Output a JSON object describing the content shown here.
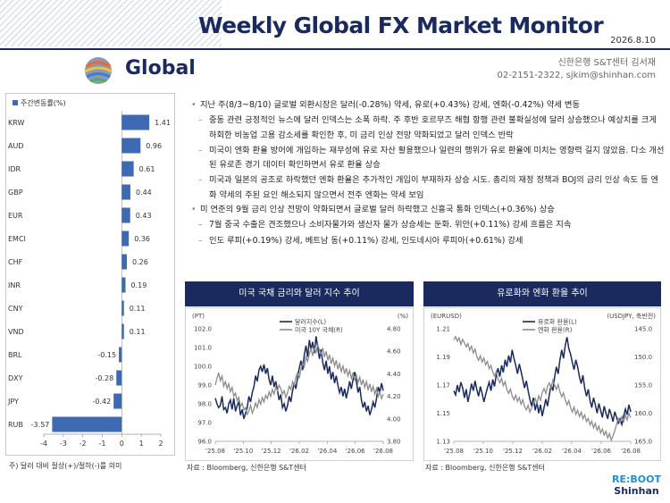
{
  "header": {
    "title": "Weekly Global FX Market Monitor",
    "date": "2026.8.10",
    "section_title": "Global",
    "author_line": "신한은행 S&T센터 김서재",
    "contact_line": "02-2151-2322, sjkim@shinhan.com"
  },
  "colors": {
    "navy": "#1a2a5e",
    "bar": "#3e6ab3",
    "grey_line": "#8c8c8c",
    "accent": "#1f8fd6"
  },
  "bullets": [
    {
      "level": 1,
      "text": "지난 주(8/3~8/10) 글로벌 외환시장은 달러(-0.28%) 약세, 유로(+0.43%) 강세, 엔화(-0.42%) 약세 변동"
    },
    {
      "level": 2,
      "text": "중동 관련 긍정적인 뉴스에 달러 인덱스는 소폭 하락. 주 후반 호르무즈 해협 항행 관련 불확실성에 달러 상승했으나 예상치를 크게 하회한 비농업 고용 감소세를 확인한 후, 미 금리 인상 전망 약화되었고 달러 인덱스 반락"
    },
    {
      "level": 2,
      "text": "미국이 엔화 환율 방어에 개입하는 재무성에 유로 자산 활용했으나 일련의 행위가 유로 환율에 미치는 영향력 길지 않았음. 다소 개선된 유로존 경기 데이터 확인하면서 유로 환율 상승"
    },
    {
      "level": 2,
      "text": "미국과 일본의 공조로 하락했던 엔화 환율은 추가적인 개입이 부재하자 상승 시도. 총리의 재정 정책과 BOJ의 금리 인상 속도 등 엔화 약세의 주된 요인 해소되지 않으면서 전주 엔화는 약세 보임"
    },
    {
      "level": 1,
      "text": "미 연준의 9월 금리 인상 전망이 약화되면서 글로벌 달러 하락했고 신흥국 통화 인덱스(+0.36%) 상승"
    },
    {
      "level": 2,
      "text": "7월 중국 수출은 견조했으나 소비자물가와 생산자 물가 상승세는 둔화. 위안(+0.11%) 강세 흐름은 지속"
    },
    {
      "level": 2,
      "text": "인도 루피(+0.19%) 강세, 베트남 동(+0.11%) 강세, 인도네시아 루피아(+0.61%) 강세"
    }
  ],
  "bar_note": "주) 달러 대비 절상(+)/절하(-)를 의미",
  "chart1": {
    "heading": "미국 국채 금리와 달러 지수 추이",
    "source": "자료 : Bloomberg, 신한은행 S&T센터"
  },
  "chart2": {
    "heading": "유로화와 엔화 환율 추이",
    "source": "자료 : Bloomberg, 신한은행 S&T센터"
  },
  "footer": {
    "logo_line1": "RE:BOOT",
    "logo_line2": "Shinhan"
  },
  "chart_data": [
    {
      "type": "bar",
      "orientation": "horizontal",
      "legend": [
        "주간변동률(%)"
      ],
      "categories": [
        "KRW",
        "AUD",
        "IDR",
        "GBP",
        "EUR",
        "EMCI",
        "CHF",
        "INR",
        "CNY",
        "VND",
        "BRL",
        "DXY",
        "JPY",
        "RUB"
      ],
      "values": [
        1.41,
        0.96,
        0.61,
        0.44,
        0.43,
        0.36,
        0.26,
        0.19,
        0.11,
        0.11,
        -0.15,
        -0.28,
        -0.42,
        -3.57
      ],
      "value_labels": [
        "1.41",
        "0.96",
        "0.61",
        "0.44",
        "0.43",
        "0.36",
        "0.26",
        "0.19",
        "0.11",
        "0.11",
        "-0.15",
        "-0.28",
        "-0.42",
        "-3.57"
      ],
      "xlim": [
        -4,
        2
      ],
      "xticks": [
        "-4",
        "-3",
        "-2",
        "-1",
        "0",
        "1",
        "2"
      ]
    },
    {
      "type": "line",
      "left_axis_label": "(PT)",
      "right_axis_label": "(%)",
      "left_ticks": [
        "102.0",
        "101.0",
        "100.0",
        "99.0",
        "98.0",
        "97.0",
        "96.0"
      ],
      "right_ticks": [
        "4.80",
        "4.60",
        "4.40",
        "4.20",
        "4.00",
        "3.80"
      ],
      "ylim_left": [
        96,
        102
      ],
      "ylim_right": [
        3.8,
        4.8
      ],
      "x_ticks": [
        "'25.08",
        "'25.10",
        "'25.12",
        "'26.02",
        "'26.04",
        "'26.06",
        "'26.08"
      ],
      "series": [
        {
          "name": "달러지수(L)",
          "axis": "left",
          "color": "#1a2a5e",
          "values": [
            98.3,
            98.0,
            97.8,
            97.9,
            98.4,
            97.7,
            97.8,
            97.5,
            98.0,
            98.2,
            97.7,
            98.3,
            97.6,
            97.9,
            98.1,
            97.4,
            97.7,
            97.2,
            97.5,
            97.8,
            98.4,
            98.1,
            98.6,
            98.9,
            99.5,
            99.2,
            99.8,
            100.0,
            99.7,
            100.1,
            99.6,
            99.9,
            99.3,
            99.0,
            99.5,
            98.9,
            99.2,
            98.7,
            98.2,
            98.5,
            97.8,
            98.0,
            97.6,
            97.9,
            98.4,
            98.1,
            98.7,
            99.1,
            98.8,
            99.4,
            99.9,
            100.3,
            99.8,
            100.6,
            101.1,
            100.5,
            101.4,
            100.9,
            101.3,
            100.7,
            101.6,
            101.0,
            100.4,
            100.9,
            100.2,
            99.8,
            100.3,
            99.6,
            100.0,
            99.3,
            99.7,
            99.1,
            99.5,
            99.0,
            98.6,
            98.9,
            98.4,
            98.8,
            98.3,
            98.7,
            99.2,
            98.8,
            99.3,
            99.7,
            99.2,
            98.6,
            98.9,
            98.2,
            97.8,
            98.1,
            97.6,
            97.9,
            97.4,
            97.7,
            98.1,
            97.8,
            98.3,
            98.9,
            98.6,
            99.1,
            98.7
          ]
        },
        {
          "name": "미국 10Y 국채(R)",
          "axis": "right",
          "color": "#8c8c8c",
          "values": [
            4.3,
            4.36,
            4.41,
            4.34,
            4.38,
            4.29,
            4.33,
            4.27,
            4.31,
            4.24,
            4.28,
            4.2,
            4.23,
            4.16,
            4.19,
            4.11,
            4.14,
            4.08,
            4.1,
            4.04,
            4.07,
            4.12,
            4.05,
            4.09,
            4.14,
            4.1,
            4.17,
            4.13,
            4.19,
            4.15,
            4.21,
            4.18,
            4.24,
            4.2,
            4.26,
            4.22,
            4.28,
            4.25,
            4.3,
            4.27,
            4.22,
            4.25,
            4.19,
            4.23,
            4.29,
            4.26,
            4.33,
            4.3,
            4.37,
            4.41,
            4.36,
            4.44,
            4.5,
            4.46,
            4.55,
            4.51,
            4.58,
            4.62,
            4.56,
            4.63,
            4.59,
            4.66,
            4.61,
            4.57,
            4.63,
            4.55,
            4.6,
            4.52,
            4.57,
            4.49,
            4.54,
            4.47,
            4.52,
            4.44,
            4.49,
            4.42,
            4.47,
            4.4,
            4.45,
            4.38,
            4.43,
            4.36,
            4.41,
            4.34,
            4.39,
            4.32,
            4.37,
            4.3,
            4.35,
            4.28,
            4.33,
            4.26,
            4.31,
            4.24,
            4.29,
            4.22,
            4.27,
            4.2,
            4.24,
            4.18,
            4.22
          ]
        }
      ]
    },
    {
      "type": "line",
      "left_axis_label": "(EURUSD)",
      "right_axis_label": "(USDJPY, 축반전)",
      "left_ticks": [
        "1.21",
        "1.19",
        "1.17",
        "1.15",
        "1.13"
      ],
      "right_ticks": [
        "145.0",
        "150.0",
        "155.0",
        "160.0",
        "165.0"
      ],
      "ylim_left": [
        1.13,
        1.21
      ],
      "right_inverted": true,
      "ylim_right": [
        145,
        165
      ],
      "x_ticks": [
        "'25.08",
        "'25.10",
        "'25.12",
        "'26.02",
        "'26.04",
        "'26.06",
        "'26.08"
      ],
      "series": [
        {
          "name": "유로화 환율(L)",
          "axis": "left",
          "color": "#1a2a5e",
          "values": [
            1.166,
            1.163,
            1.17,
            1.165,
            1.172,
            1.168,
            1.161,
            1.167,
            1.158,
            1.164,
            1.171,
            1.166,
            1.173,
            1.167,
            1.162,
            1.169,
            1.164,
            1.158,
            1.163,
            1.168,
            1.172,
            1.166,
            1.174,
            1.169,
            1.177,
            1.182,
            1.176,
            1.184,
            1.179,
            1.188,
            1.183,
            1.191,
            1.186,
            1.195,
            1.189,
            1.184,
            1.178,
            1.185,
            1.18,
            1.174,
            1.168,
            1.173,
            1.166,
            1.16,
            1.155,
            1.161,
            1.152,
            1.158,
            1.15,
            1.156,
            1.148,
            1.154,
            1.16,
            1.155,
            1.163,
            1.17,
            1.166,
            1.176,
            1.183,
            1.178,
            1.188,
            1.195,
            1.189,
            1.198,
            1.204,
            1.196,
            1.192,
            1.186,
            1.181,
            1.188,
            1.183,
            1.176,
            1.171,
            1.177,
            1.168,
            1.162,
            1.167,
            1.159,
            1.154,
            1.161,
            1.156,
            1.15,
            1.157,
            1.152,
            1.147,
            1.155,
            1.15,
            1.146,
            1.153,
            1.149,
            1.144,
            1.151,
            1.147,
            1.143,
            1.146,
            1.142,
            1.148,
            1.153,
            1.149,
            1.156,
            1.151
          ]
        },
        {
          "name": "엔화 환율(R)",
          "axis": "right",
          "color": "#8c8c8c",
          "values": [
            147.0,
            146.4,
            147.2,
            146.6,
            147.8,
            146.9,
            147.5,
            148.2,
            147.6,
            148.8,
            148.1,
            149.3,
            148.6,
            149.9,
            150.6,
            149.8,
            150.9,
            150.2,
            151.4,
            150.8,
            152.1,
            151.5,
            152.7,
            153.4,
            152.6,
            153.9,
            154.6,
            153.8,
            155.1,
            154.4,
            155.8,
            156.5,
            155.7,
            156.9,
            157.6,
            156.8,
            157.9,
            157.2,
            158.4,
            157.6,
            158.8,
            159.4,
            158.6,
            159.8,
            159.1,
            158.2,
            157.4,
            158.3,
            156.9,
            157.7,
            156.3,
            155.6,
            156.5,
            155.2,
            154.6,
            155.5,
            154.1,
            155.0,
            155.8,
            154.9,
            156.2,
            157.1,
            156.4,
            157.6,
            158.5,
            157.8,
            159.0,
            159.8,
            158.9,
            160.2,
            159.5,
            160.6,
            159.8,
            161.0,
            160.3,
            161.5,
            160.9,
            162.1,
            161.4,
            162.6,
            161.8,
            163.0,
            162.3,
            163.5,
            162.8,
            163.9,
            163.2,
            164.4,
            163.6,
            164.8,
            164.0,
            163.1,
            162.0,
            160.9,
            161.7,
            160.6,
            161.5,
            160.3,
            161.2,
            160.0,
            160.8
          ]
        }
      ]
    }
  ]
}
